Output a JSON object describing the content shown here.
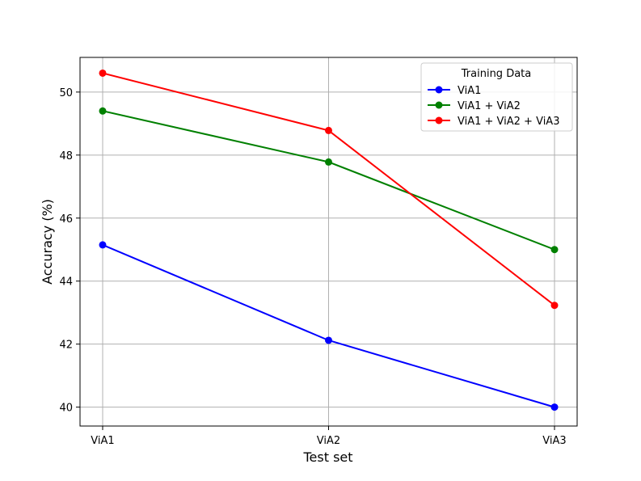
{
  "chart_data": {
    "type": "line",
    "title": "",
    "xlabel": "Test set",
    "ylabel": "Accuracy (%)",
    "categories": [
      "ViA1",
      "ViA2",
      "ViA3"
    ],
    "ylim": [
      39.4,
      51.1
    ],
    "yticks": [
      40,
      42,
      44,
      46,
      48,
      50
    ],
    "grid": true,
    "legend": {
      "title": "Training Data",
      "placement": "top-right"
    },
    "series": [
      {
        "name": "ViA1",
        "color": "#0000ff",
        "values": [
          45.15,
          42.12,
          40.0
        ]
      },
      {
        "name": "ViA1 + ViA2",
        "color": "#008000",
        "values": [
          49.4,
          47.78,
          45.0
        ]
      },
      {
        "name": "ViA1 + ViA2 + ViA3",
        "color": "#ff0000",
        "values": [
          50.6,
          48.78,
          43.23
        ]
      }
    ]
  }
}
